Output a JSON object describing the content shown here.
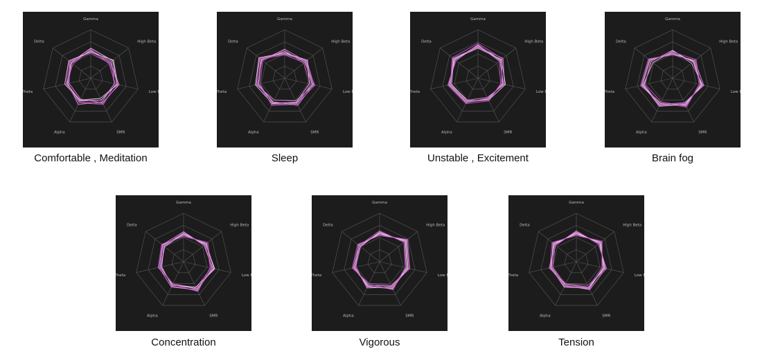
{
  "axes": [
    "Gamma",
    "High Beta",
    "Low Beta",
    "SMR",
    "Alpha",
    "Theta",
    "Delta"
  ],
  "colors": {
    "panel_bg": "#1c1c1c",
    "grid": "#5a5a5a",
    "axis_label": "#bdbdbd",
    "line_light": "#f3c8f2",
    "line_mid": "#e58be3",
    "line_dark": "#c25cc2",
    "caption": "#111111"
  },
  "chart_data": [
    {
      "type": "radar",
      "title": "Comfortable , Meditation",
      "axes": [
        "Gamma",
        "High Beta",
        "Low Beta",
        "SMR",
        "Alpha",
        "Theta",
        "Delta"
      ],
      "rlim": [
        0,
        1
      ],
      "grid": true,
      "series": [
        {
          "values": [
            0.62,
            0.58,
            0.55,
            0.5,
            0.52,
            0.5,
            0.52
          ]
        },
        {
          "values": [
            0.56,
            0.52,
            0.6,
            0.56,
            0.48,
            0.46,
            0.55
          ]
        },
        {
          "values": [
            0.6,
            0.48,
            0.52,
            0.6,
            0.56,
            0.52,
            0.47
          ]
        },
        {
          "values": [
            0.54,
            0.6,
            0.57,
            0.46,
            0.5,
            0.55,
            0.58
          ]
        },
        {
          "values": [
            0.58,
            0.55,
            0.5,
            0.54,
            0.6,
            0.48,
            0.5
          ]
        },
        {
          "values": [
            0.52,
            0.5,
            0.58,
            0.58,
            0.54,
            0.52,
            0.56
          ]
        }
      ]
    },
    {
      "type": "radar",
      "title": "Sleep",
      "axes": [
        "Gamma",
        "High Beta",
        "Low Beta",
        "SMR",
        "Alpha",
        "Theta",
        "Delta"
      ],
      "rlim": [
        0,
        1
      ],
      "grid": true,
      "series": [
        {
          "values": [
            0.55,
            0.54,
            0.58,
            0.57,
            0.56,
            0.55,
            0.62
          ]
        },
        {
          "values": [
            0.5,
            0.58,
            0.62,
            0.52,
            0.5,
            0.6,
            0.66
          ]
        },
        {
          "values": [
            0.58,
            0.5,
            0.55,
            0.6,
            0.62,
            0.52,
            0.58
          ]
        },
        {
          "values": [
            0.52,
            0.6,
            0.52,
            0.55,
            0.58,
            0.62,
            0.68
          ]
        },
        {
          "values": [
            0.6,
            0.56,
            0.6,
            0.62,
            0.54,
            0.58,
            0.6
          ]
        },
        {
          "values": [
            0.48,
            0.52,
            0.64,
            0.58,
            0.6,
            0.56,
            0.64
          ]
        }
      ]
    },
    {
      "type": "radar",
      "title": "Unstable , Excitement",
      "axes": [
        "Gamma",
        "High Beta",
        "Low Beta",
        "SMR",
        "Alpha",
        "Theta",
        "Delta"
      ],
      "rlim": [
        0,
        1
      ],
      "grid": true,
      "series": [
        {
          "values": [
            0.68,
            0.6,
            0.52,
            0.48,
            0.55,
            0.6,
            0.62
          ]
        },
        {
          "values": [
            0.64,
            0.66,
            0.56,
            0.44,
            0.5,
            0.58,
            0.66
          ]
        },
        {
          "values": [
            0.7,
            0.56,
            0.48,
            0.52,
            0.58,
            0.64,
            0.58
          ]
        },
        {
          "values": [
            0.62,
            0.62,
            0.58,
            0.5,
            0.52,
            0.56,
            0.64
          ]
        },
        {
          "values": [
            0.66,
            0.58,
            0.54,
            0.46,
            0.56,
            0.62,
            0.6
          ]
        },
        {
          "values": [
            0.72,
            0.64,
            0.5,
            0.5,
            0.54,
            0.58,
            0.68
          ]
        }
      ]
    },
    {
      "type": "radar",
      "title": "Brain fog",
      "axes": [
        "Gamma",
        "High Beta",
        "Low Beta",
        "SMR",
        "Alpha",
        "Theta",
        "Delta"
      ],
      "rlim": [
        0,
        1
      ],
      "grid": true,
      "series": [
        {
          "values": [
            0.52,
            0.56,
            0.6,
            0.62,
            0.58,
            0.64,
            0.6
          ]
        },
        {
          "values": [
            0.58,
            0.5,
            0.64,
            0.58,
            0.62,
            0.6,
            0.56
          ]
        },
        {
          "values": [
            0.48,
            0.6,
            0.56,
            0.66,
            0.56,
            0.68,
            0.64
          ]
        },
        {
          "values": [
            0.56,
            0.54,
            0.62,
            0.6,
            0.64,
            0.62,
            0.52
          ]
        },
        {
          "values": [
            0.5,
            0.58,
            0.66,
            0.56,
            0.6,
            0.66,
            0.62
          ]
        },
        {
          "values": [
            0.54,
            0.62,
            0.58,
            0.64,
            0.54,
            0.58,
            0.58
          ]
        }
      ]
    },
    {
      "type": "radar",
      "title": "Concentration",
      "axes": [
        "Gamma",
        "High Beta",
        "Low Beta",
        "SMR",
        "Alpha",
        "Theta",
        "Delta"
      ],
      "rlim": [
        0,
        1
      ],
      "grid": true,
      "series": [
        {
          "values": [
            0.56,
            0.6,
            0.64,
            0.62,
            0.52,
            0.5,
            0.55
          ]
        },
        {
          "values": [
            0.6,
            0.56,
            0.6,
            0.66,
            0.56,
            0.46,
            0.52
          ]
        },
        {
          "values": [
            0.52,
            0.64,
            0.58,
            0.6,
            0.5,
            0.54,
            0.58
          ]
        },
        {
          "values": [
            0.58,
            0.58,
            0.66,
            0.58,
            0.54,
            0.48,
            0.5
          ]
        },
        {
          "values": [
            0.62,
            0.54,
            0.62,
            0.64,
            0.58,
            0.52,
            0.56
          ]
        },
        {
          "values": [
            0.54,
            0.62,
            0.56,
            0.68,
            0.52,
            0.5,
            0.54
          ]
        }
      ]
    },
    {
      "type": "radar",
      "title": "Vigorous",
      "axes": [
        "Gamma",
        "High Beta",
        "Low Beta",
        "SMR",
        "Alpha",
        "Theta",
        "Delta"
      ],
      "rlim": [
        0,
        1
      ],
      "grid": true,
      "series": [
        {
          "values": [
            0.58,
            0.7,
            0.6,
            0.56,
            0.54,
            0.56,
            0.55
          ]
        },
        {
          "values": [
            0.62,
            0.66,
            0.56,
            0.6,
            0.58,
            0.52,
            0.5
          ]
        },
        {
          "values": [
            0.54,
            0.74,
            0.64,
            0.54,
            0.5,
            0.58,
            0.58
          ]
        },
        {
          "values": [
            0.6,
            0.68,
            0.58,
            0.62,
            0.56,
            0.54,
            0.52
          ]
        },
        {
          "values": [
            0.56,
            0.72,
            0.62,
            0.58,
            0.6,
            0.5,
            0.56
          ]
        },
        {
          "values": [
            0.64,
            0.64,
            0.54,
            0.64,
            0.52,
            0.56,
            0.54
          ]
        }
      ]
    },
    {
      "type": "radar",
      "title": "Tension",
      "axes": [
        "Gamma",
        "High Beta",
        "Low Beta",
        "SMR",
        "Alpha",
        "Theta",
        "Delta"
      ],
      "rlim": [
        0,
        1
      ],
      "grid": true,
      "series": [
        {
          "values": [
            0.6,
            0.62,
            0.6,
            0.58,
            0.52,
            0.56,
            0.58
          ]
        },
        {
          "values": [
            0.56,
            0.66,
            0.56,
            0.62,
            0.56,
            0.52,
            0.62
          ]
        },
        {
          "values": [
            0.64,
            0.58,
            0.64,
            0.54,
            0.5,
            0.58,
            0.54
          ]
        },
        {
          "values": [
            0.58,
            0.64,
            0.58,
            0.6,
            0.58,
            0.54,
            0.6
          ]
        },
        {
          "values": [
            0.62,
            0.6,
            0.62,
            0.64,
            0.54,
            0.5,
            0.56
          ]
        },
        {
          "values": [
            0.54,
            0.68,
            0.54,
            0.58,
            0.56,
            0.56,
            0.64
          ]
        }
      ]
    }
  ]
}
